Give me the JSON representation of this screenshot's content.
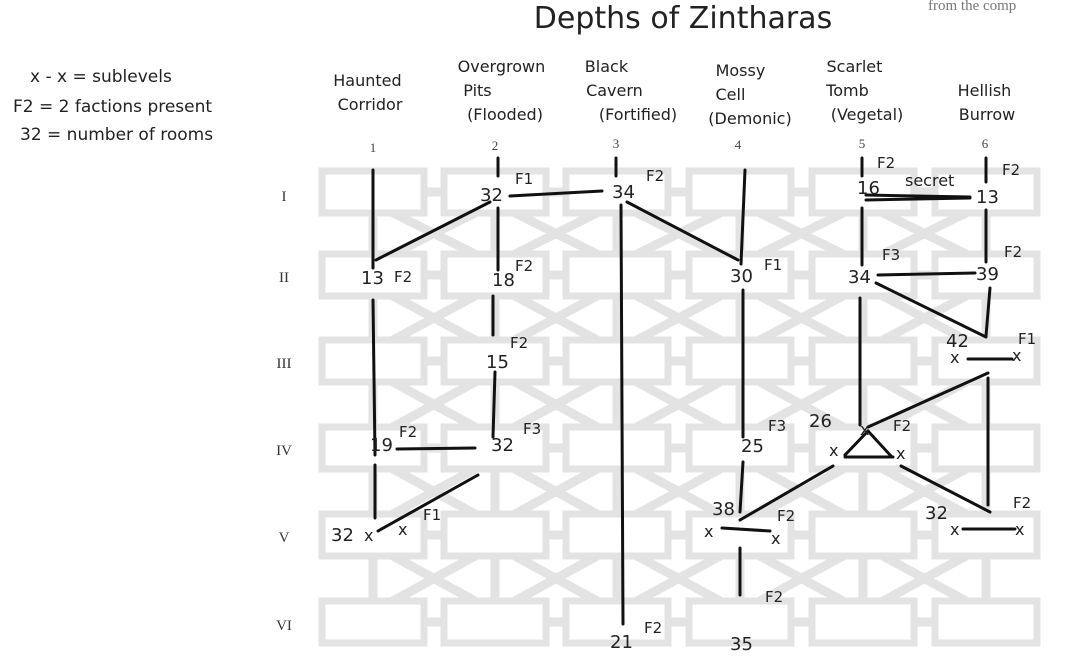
{
  "title": "Depths of Zintharas",
  "corner_text": "from the comp",
  "legend": [
    "x - x = sublevels",
    "F2 = 2 factions present",
    "32 = number of rooms"
  ],
  "columns": [
    {
      "number": "1",
      "name_lines": [
        "Haunted",
        "Corridor"
      ]
    },
    {
      "number": "2",
      "name_lines": [
        "Overgrown",
        "Pits",
        "(Flooded)"
      ]
    },
    {
      "number": "3",
      "name_lines": [
        "Black",
        "Cavern",
        "(Fortified)"
      ]
    },
    {
      "number": "4",
      "name_lines": [
        "Mossy",
        "Cell",
        "(Demonic)"
      ]
    },
    {
      "number": "5",
      "name_lines": [
        "Scarlet",
        "Tomb",
        "(Vegetal)"
      ]
    },
    {
      "number": "6",
      "name_lines": [
        "Hellish",
        "Burrow"
      ]
    }
  ],
  "rows": [
    "I",
    "II",
    "III",
    "IV",
    "V",
    "VI"
  ],
  "room_labels": [
    {
      "text": "32"
    },
    {
      "text": "F1"
    },
    {
      "text": "34"
    },
    {
      "text": "F2"
    },
    {
      "text": "16"
    },
    {
      "text": "F2"
    },
    {
      "text": "secret"
    },
    {
      "text": "13"
    },
    {
      "text": "F2"
    },
    {
      "text": "13"
    },
    {
      "text": "F2"
    },
    {
      "text": "18"
    },
    {
      "text": "F2"
    },
    {
      "text": "30"
    },
    {
      "text": "F1"
    },
    {
      "text": "34"
    },
    {
      "text": "F3"
    },
    {
      "text": "39"
    },
    {
      "text": "F2"
    },
    {
      "text": "F2"
    },
    {
      "text": "15"
    },
    {
      "text": "42"
    },
    {
      "text": "F1"
    },
    {
      "text": "x"
    },
    {
      "text": "x"
    },
    {
      "text": "19"
    },
    {
      "text": "F2"
    },
    {
      "text": "32"
    },
    {
      "text": "F3"
    },
    {
      "text": "25"
    },
    {
      "text": "F3"
    },
    {
      "text": "26"
    },
    {
      "text": "x"
    },
    {
      "text": "F2"
    },
    {
      "text": "x"
    },
    {
      "text": "x"
    },
    {
      "text": "32"
    },
    {
      "text": "x"
    },
    {
      "text": "x"
    },
    {
      "text": "F1"
    },
    {
      "text": "38"
    },
    {
      "text": "x"
    },
    {
      "text": "x"
    },
    {
      "text": "F2"
    },
    {
      "text": "32"
    },
    {
      "text": "x"
    },
    {
      "text": "x"
    },
    {
      "text": "F2"
    },
    {
      "text": "21"
    },
    {
      "text": "F2"
    },
    {
      "text": "35"
    },
    {
      "text": "F2"
    }
  ]
}
